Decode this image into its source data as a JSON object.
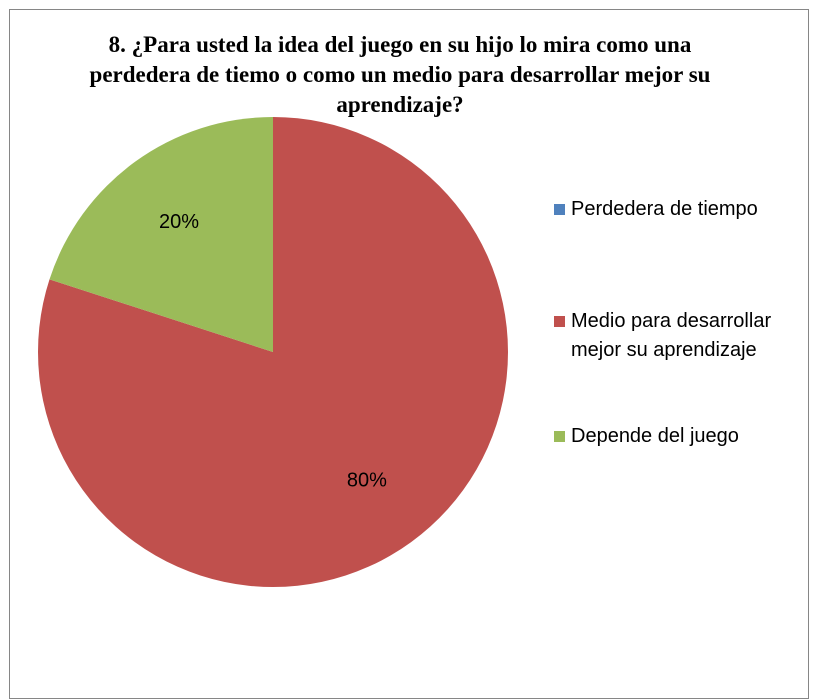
{
  "chart_data": {
    "type": "pie",
    "title": "8. ¿Para usted la idea del juego en su hijo lo mira como una perdedera de tiemo o como un medio para desarrollar mejor su aprendizaje?",
    "categories": [
      "Perdedera de tiempo",
      "Medio para desarrollar mejor su aprendizaje",
      "Depende del juego"
    ],
    "values": [
      0,
      80,
      20
    ],
    "value_labels": [
      null,
      "80%",
      "20%"
    ],
    "colors": [
      "#4f81bd",
      "#c0504d",
      "#9bbb59"
    ],
    "legend": "right"
  }
}
